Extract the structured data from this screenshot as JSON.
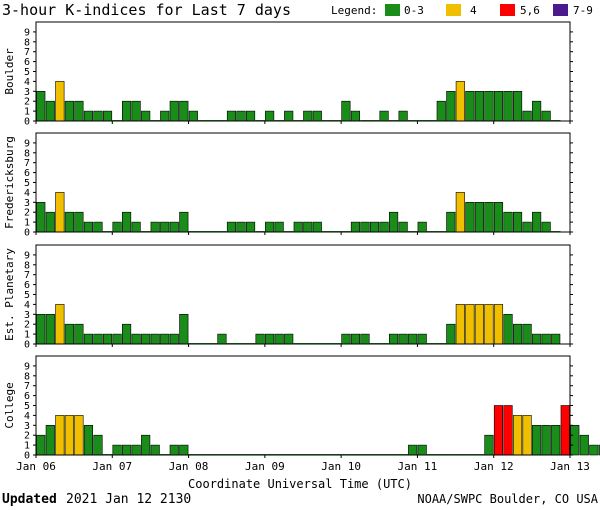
{
  "chart_data": {
    "type": "bar",
    "title": "3-hour K-indices for Last 7 days",
    "legend": {
      "label": "Legend:",
      "placement": "top-right",
      "items": [
        {
          "label": "0-3",
          "color": "#1a8c1a"
        },
        {
          "label": "4",
          "color": "#f0c000"
        },
        {
          "label": "5,6",
          "color": "#ff0000"
        },
        {
          "label": "7-9",
          "color": "#4b1a8c"
        }
      ]
    },
    "xlabel": "Coordinate Universal Time (UTC)",
    "x_tick_labels": [
      "Jan 06",
      "Jan 07",
      "Jan 08",
      "Jan 09",
      "Jan 10",
      "Jan 11",
      "Jan 12",
      "Jan 13"
    ],
    "y_ticks": [
      0,
      1,
      2,
      3,
      4,
      5,
      6,
      7,
      8,
      9
    ],
    "ylim": [
      0,
      9
    ],
    "intervals_per_day": 8,
    "grid": false,
    "panels": [
      {
        "name": "Boulder",
        "values": [
          3,
          2,
          4,
          2,
          2,
          1,
          1,
          1,
          0,
          2,
          2,
          1,
          0,
          1,
          2,
          2,
          1,
          0,
          0,
          0,
          1,
          1,
          1,
          0,
          1,
          0,
          1,
          0,
          1,
          1,
          0,
          0,
          2,
          1,
          0,
          0,
          1,
          0,
          1,
          0,
          0,
          0,
          2,
          3,
          4,
          3,
          3,
          3,
          3,
          3,
          3,
          1,
          2,
          1,
          0
        ]
      },
      {
        "name": "Fredericksburg",
        "values": [
          3,
          2,
          4,
          2,
          2,
          1,
          1,
          0,
          1,
          2,
          1,
          0,
          1,
          1,
          1,
          2,
          0,
          0,
          0,
          0,
          1,
          1,
          1,
          0,
          1,
          1,
          0,
          1,
          1,
          1,
          0,
          0,
          0,
          1,
          1,
          1,
          1,
          2,
          1,
          0,
          1,
          0,
          0,
          2,
          4,
          3,
          3,
          3,
          3,
          2,
          2,
          1,
          2,
          1,
          0
        ]
      },
      {
        "name": "Est. Planetary",
        "values": [
          3,
          3,
          4,
          2,
          2,
          1,
          1,
          1,
          1,
          2,
          1,
          1,
          1,
          1,
          1,
          3,
          0,
          0,
          0,
          1,
          0,
          0,
          0,
          1,
          1,
          1,
          1,
          0,
          0,
          0,
          0,
          0,
          1,
          1,
          1,
          0,
          0,
          1,
          1,
          1,
          1,
          0,
          0,
          2,
          4,
          4,
          4,
          4,
          4,
          3,
          2,
          2,
          1,
          1,
          1
        ]
      },
      {
        "name": "College",
        "values": [
          2,
          3,
          4,
          4,
          4,
          3,
          2,
          0,
          1,
          1,
          1,
          2,
          1,
          0,
          1,
          1,
          0,
          0,
          0,
          0,
          0,
          0,
          0,
          0,
          0,
          0,
          0,
          0,
          0,
          0,
          0,
          0,
          0,
          0,
          0,
          0,
          0,
          0,
          0,
          1,
          1,
          0,
          0,
          0,
          0,
          0,
          0,
          2,
          5,
          5,
          4,
          4,
          3,
          3,
          3,
          5,
          3,
          2,
          1,
          1
        ]
      }
    ],
    "footer": {
      "updated_label": "Updated",
      "updated_value": "2021 Jan 12 2130",
      "source": "NOAA/SWPC Boulder, CO USA"
    }
  }
}
